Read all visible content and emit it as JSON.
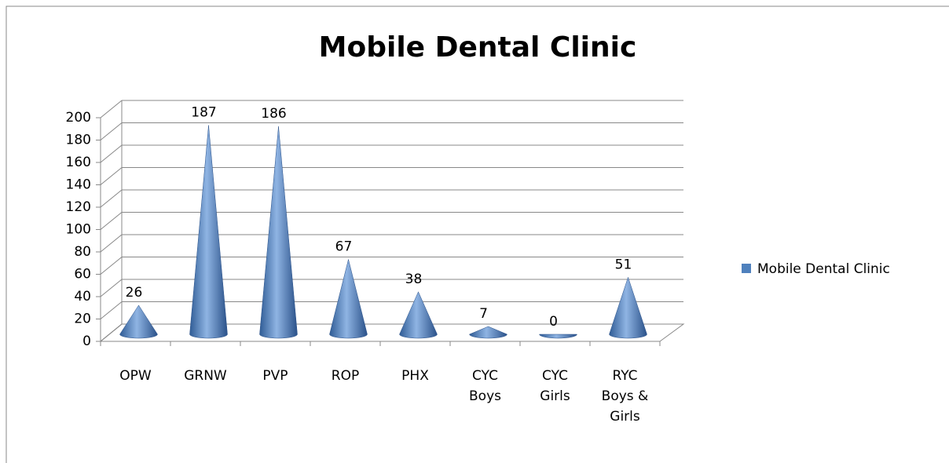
{
  "chart_data": {
    "type": "cone",
    "title": "Mobile Dental Clinic",
    "categories": [
      "OPW",
      "GRNW",
      "PVP",
      "ROP",
      "PHX",
      "CYC Boys",
      "CYC Girls",
      "RYC Boys & Girls"
    ],
    "series": [
      {
        "name": "Mobile Dental Clinic",
        "color": "#4f81bd",
        "values": [
          26,
          187,
          186,
          67,
          38,
          7,
          0,
          51
        ]
      }
    ],
    "ylim": [
      0,
      200
    ],
    "yticks": [
      0,
      20,
      40,
      60,
      80,
      100,
      120,
      140,
      160,
      180,
      200
    ],
    "grid": true,
    "legend": "right"
  }
}
